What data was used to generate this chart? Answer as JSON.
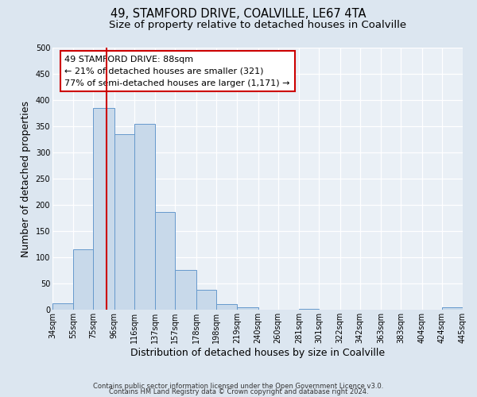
{
  "title": "49, STAMFORD DRIVE, COALVILLE, LE67 4TA",
  "subtitle": "Size of property relative to detached houses in Coalville",
  "xlabel": "Distribution of detached houses by size in Coalville",
  "ylabel": "Number of detached properties",
  "bar_edges": [
    34,
    55,
    75,
    96,
    116,
    137,
    157,
    178,
    198,
    219,
    240,
    260,
    281,
    301,
    322,
    342,
    363,
    383,
    404,
    424,
    445
  ],
  "bar_heights": [
    12,
    115,
    385,
    335,
    355,
    187,
    76,
    38,
    11,
    5,
    0,
    0,
    1,
    0,
    0,
    0,
    0,
    0,
    0,
    4
  ],
  "bar_color": "#c8d9ea",
  "bar_edge_color": "#6699cc",
  "property_line_x": 88,
  "property_line_color": "#cc0000",
  "annotation_text": "49 STAMFORD DRIVE: 88sqm\n← 21% of detached houses are smaller (321)\n77% of semi-detached houses are larger (1,171) →",
  "annotation_box_color": "#cc0000",
  "ylim": [
    0,
    500
  ],
  "tick_labels": [
    "34sqm",
    "55sqm",
    "75sqm",
    "96sqm",
    "116sqm",
    "137sqm",
    "157sqm",
    "178sqm",
    "198sqm",
    "219sqm",
    "240sqm",
    "260sqm",
    "281sqm",
    "301sqm",
    "322sqm",
    "342sqm",
    "363sqm",
    "383sqm",
    "404sqm",
    "424sqm",
    "445sqm"
  ],
  "yticks": [
    0,
    50,
    100,
    150,
    200,
    250,
    300,
    350,
    400,
    450,
    500
  ],
  "footer_line1": "Contains HM Land Registry data © Crown copyright and database right 2024.",
  "footer_line2": "Contains public sector information licensed under the Open Government Licence v3.0.",
  "bg_color": "#dce6f0",
  "plot_bg_color": "#eaf0f6",
  "grid_color": "#ffffff",
  "title_fontsize": 10.5,
  "subtitle_fontsize": 9.5,
  "axis_label_fontsize": 9,
  "tick_fontsize": 7,
  "annotation_fontsize": 8,
  "footer_fontsize": 6
}
